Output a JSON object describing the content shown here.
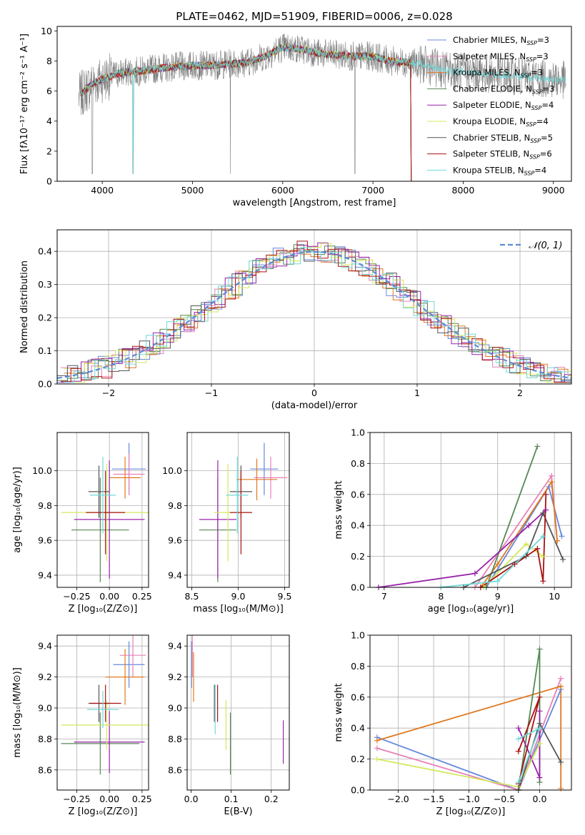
{
  "figure": {
    "title": "PLATE=0462, MJD=51909, FIBERID=0006, z=0.028"
  },
  "models": [
    {
      "name": "Chabrier MILES",
      "nssp": "3",
      "color": "#6688dd"
    },
    {
      "name": "Salpeter MILES",
      "nssp": "3",
      "color": "#e880b8"
    },
    {
      "name": "Kroupa MILES",
      "nssp": "3",
      "color": "#e07820"
    },
    {
      "name": "Chabrier ELODIE",
      "nssp": "3",
      "color": "#558855"
    },
    {
      "name": "Salpeter ELODIE",
      "nssp": "4",
      "color": "#9922aa"
    },
    {
      "name": "Kroupa ELODIE",
      "nssp": "4",
      "color": "#d4e85c"
    },
    {
      "name": "Chabrier STELIB",
      "nssp": "5",
      "color": "#555555"
    },
    {
      "name": "Salpeter STELIB",
      "nssp": "6",
      "color": "#aa1111"
    },
    {
      "name": "Kroupa STELIB",
      "nssp": "4",
      "color": "#70d8d8"
    }
  ],
  "chart_data": [
    {
      "type": "line",
      "xlabel": "wavelength [Angstrom, rest frame]",
      "ylabel": "Flux [fλ10⁻¹⁷ erg cm⁻² s⁻¹ A⁻¹]",
      "xlim": [
        3500,
        9200
      ],
      "ylim": [
        0,
        10.3
      ],
      "xticks": [
        "4000",
        "5000",
        "6000",
        "7000",
        "8000",
        "9000"
      ],
      "yticks": [
        "0",
        "2",
        "4",
        "6",
        "8",
        "10"
      ],
      "legend": "top-right",
      "data_color": "#808080",
      "continuum": {
        "x": [
          3740,
          3800,
          3900,
          4000,
          4200,
          4400,
          4600,
          4800,
          5000,
          5200,
          5400,
          5600,
          5800,
          6000,
          6200,
          6400,
          6600,
          6800,
          7000,
          7200,
          7400,
          7600,
          7800,
          8000,
          8200,
          8400,
          8600,
          8800,
          9000,
          9140
        ],
        "y": [
          5.6,
          6.0,
          6.5,
          6.8,
          7.2,
          7.3,
          7.5,
          7.6,
          7.7,
          7.7,
          7.8,
          7.9,
          8.3,
          8.9,
          8.8,
          8.5,
          8.4,
          8.3,
          8.3,
          8.0,
          7.9,
          7.7,
          7.4,
          7.3,
          7.2,
          7.1,
          7.0,
          6.9,
          6.8,
          6.7
        ]
      }
    },
    {
      "type": "bar",
      "xlabel": "(data-model)/error",
      "ylabel": "Normed distribution",
      "xlim": [
        -2.5,
        2.5
      ],
      "ylim": [
        0,
        0.465
      ],
      "xticks": [
        "−2",
        "−1",
        "0",
        "1",
        "2"
      ],
      "yticks": [
        "0.0",
        "0.1",
        "0.2",
        "0.3",
        "0.4"
      ],
      "grid": true,
      "legend": "top-right",
      "reference_label": "𝒩(0, 1)",
      "reference_color": "#5b8bd6"
    },
    {
      "type": "scatter",
      "xlabel": "Z [log₁₀(Z/Z⊙)]",
      "ylabel": "age  [log₁₀(age/yr)]",
      "xlim": [
        -0.4,
        0.3
      ],
      "ylim": [
        9.33,
        10.22
      ],
      "xticks": [
        "−0.25",
        "0.00",
        "0.25"
      ],
      "yticks": [
        "9.4",
        "9.6",
        "9.8",
        "10.0"
      ],
      "points": [
        {
          "x": 0.15,
          "y": 10.01,
          "xe": 0.13,
          "ye": 0.15
        },
        {
          "x": 0.15,
          "y": 9.98,
          "xe": 0.12,
          "ye": 0.12
        },
        {
          "x": 0.12,
          "y": 9.96,
          "xe": 0.12,
          "ye": 0.12
        },
        {
          "x": -0.07,
          "y": 9.66,
          "xe": 0.22,
          "ye": 0.3
        },
        {
          "x": 0.0,
          "y": 9.72,
          "xe": 0.27,
          "ye": 0.34
        },
        {
          "x": -0.02,
          "y": 9.76,
          "xe": 0.35,
          "ye": 0.28
        },
        {
          "x": -0.08,
          "y": 9.88,
          "xe": 0.08,
          "ye": 0.15
        },
        {
          "x": -0.03,
          "y": 9.76,
          "xe": 0.15,
          "ye": 0.24
        },
        {
          "x": -0.05,
          "y": 9.86,
          "xe": 0.1,
          "ye": 0.22
        }
      ]
    },
    {
      "type": "scatter",
      "xlabel": "mass [log₁₀(M/M⊙)]",
      "xlim": [
        8.45,
        9.55
      ],
      "ylim": [
        9.33,
        10.22
      ],
      "xticks": [
        "8.5",
        "9.0",
        "9.5"
      ],
      "yticks": [
        "9.4",
        "9.6",
        "9.8",
        "10.0"
      ],
      "points": [
        {
          "x": 9.28,
          "y": 10.01,
          "xe": 0.15,
          "ye": 0.15
        },
        {
          "x": 9.35,
          "y": 9.96,
          "xe": 0.18,
          "ye": 0.12
        },
        {
          "x": 9.2,
          "y": 9.95,
          "xe": 0.22,
          "ye": 0.12
        },
        {
          "x": 8.78,
          "y": 9.66,
          "xe": 0.2,
          "ye": 0.3
        },
        {
          "x": 8.78,
          "y": 9.72,
          "xe": 0.2,
          "ye": 0.34
        },
        {
          "x": 8.89,
          "y": 9.76,
          "xe": 0.15,
          "ye": 0.28
        },
        {
          "x": 9.03,
          "y": 9.88,
          "xe": 0.12,
          "ye": 0.15
        },
        {
          "x": 9.03,
          "y": 9.76,
          "xe": 0.12,
          "ye": 0.24
        },
        {
          "x": 8.99,
          "y": 9.86,
          "xe": 0.12,
          "ye": 0.22
        }
      ]
    },
    {
      "type": "line",
      "xlabel": "age  [log₁₀(age/yr)]",
      "ylabel": "mass weight",
      "xlim": [
        6.75,
        10.3
      ],
      "ylim": [
        0,
        1.0
      ],
      "xticks": [
        "7",
        "8",
        "9",
        "10"
      ],
      "yticks": [
        "0.0",
        "0.2",
        "0.4",
        "0.6",
        "0.8",
        "1.0"
      ],
      "grid": true,
      "series": [
        {
          "x": [
            8.8,
            9.9,
            10.13
          ],
          "y": [
            0.0,
            0.65,
            0.33
          ]
        },
        {
          "x": [
            8.6,
            9.95,
            10.05
          ],
          "y": [
            0.0,
            0.72,
            0.3
          ]
        },
        {
          "x": [
            8.7,
            9.0,
            9.95,
            10.05
          ],
          "y": [
            0.0,
            0.15,
            0.68,
            0.3
          ]
        },
        {
          "x": [
            8.8,
            9.7
          ],
          "y": [
            0.0,
            0.91
          ]
        },
        {
          "x": [
            6.9,
            8.6,
            9.55,
            9.85
          ],
          "y": [
            0.0,
            0.09,
            0.4,
            0.5
          ]
        },
        {
          "x": [
            8.75,
            9.5,
            9.8
          ],
          "y": [
            0.0,
            0.28,
            0.2
          ]
        },
        {
          "x": [
            8.4,
            9.5,
            9.8,
            10.15
          ],
          "y": [
            0.0,
            0.2,
            0.48,
            0.18
          ]
        },
        {
          "x": [
            8.7,
            9.3,
            9.7,
            9.8,
            9.85
          ],
          "y": [
            0.0,
            0.15,
            0.25,
            0.04,
            0.6
          ]
        },
        {
          "x": [
            8.0,
            9.0,
            9.8
          ],
          "y": [
            0.0,
            0.04,
            0.33
          ]
        }
      ]
    },
    {
      "type": "scatter",
      "xlabel": "Z [log₁₀(Z/Z⊙)]",
      "ylabel": "mass [log₁₀(M/M⊙)]",
      "xlim": [
        -0.4,
        0.3
      ],
      "ylim": [
        8.47,
        9.47
      ],
      "xticks": [
        "−0.25",
        "0.00",
        "0.25"
      ],
      "yticks": [
        "8.6",
        "8.8",
        "9.0",
        "9.2",
        "9.4"
      ],
      "points": [
        {
          "x": 0.15,
          "y": 9.28,
          "xe": 0.12,
          "ye": 0.15
        },
        {
          "x": 0.18,
          "y": 9.34,
          "xe": 0.1,
          "ye": 0.14
        },
        {
          "x": 0.12,
          "y": 9.2,
          "xe": 0.15,
          "ye": 0.18
        },
        {
          "x": -0.07,
          "y": 8.77,
          "xe": 0.3,
          "ye": 0.2
        },
        {
          "x": 0.0,
          "y": 8.78,
          "xe": 0.27,
          "ye": 0.2
        },
        {
          "x": -0.02,
          "y": 8.89,
          "xe": 0.35,
          "ye": 0.16
        },
        {
          "x": -0.08,
          "y": 9.03,
          "xe": 0.08,
          "ye": 0.12
        },
        {
          "x": -0.03,
          "y": 9.03,
          "xe": 0.12,
          "ye": 0.12
        },
        {
          "x": -0.05,
          "y": 8.99,
          "xe": 0.12,
          "ye": 0.12
        }
      ]
    },
    {
      "type": "scatter",
      "xlabel": "E(B-V)",
      "xlim": [
        -0.01,
        0.245
      ],
      "ylim": [
        8.47,
        9.47
      ],
      "xticks": [
        "0.0",
        "0.1",
        "0.2"
      ],
      "yticks": [
        "8.6",
        "8.8",
        "9.0",
        "9.2",
        "9.4"
      ],
      "points": [
        {
          "x": 0.001,
          "y": 9.28,
          "ye": 0.15
        },
        {
          "x": 0.003,
          "y": 9.34,
          "ye": 0.14
        },
        {
          "x": 0.006,
          "y": 9.2,
          "ye": 0.16
        },
        {
          "x": 0.098,
          "y": 8.77,
          "ye": 0.2
        },
        {
          "x": 0.23,
          "y": 8.78,
          "ye": 0.14
        },
        {
          "x": 0.087,
          "y": 8.89,
          "ye": 0.16
        },
        {
          "x": 0.058,
          "y": 9.03,
          "ye": 0.12
        },
        {
          "x": 0.066,
          "y": 9.03,
          "ye": 0.12
        },
        {
          "x": 0.06,
          "y": 8.99,
          "ye": 0.16
        }
      ]
    },
    {
      "type": "line",
      "xlabel": "Z [log₁₀(Z/Z⊙)]",
      "ylabel": "mass weight",
      "xlim": [
        -2.4,
        0.45
      ],
      "ylim": [
        0,
        1.0
      ],
      "xticks": [
        "−2.0",
        "−1.5",
        "−1.0",
        "−0.5",
        "0.0"
      ],
      "yticks": [
        "0.0",
        "0.2",
        "0.4",
        "0.6",
        "0.8",
        "1.0"
      ],
      "grid": true,
      "series": [
        {
          "x": [
            -2.3,
            -0.3,
            0.3
          ],
          "y": [
            0.34,
            0.0,
            0.65
          ]
        },
        {
          "x": [
            -2.3,
            -0.3,
            0.3
          ],
          "y": [
            0.27,
            0.0,
            0.72
          ]
        },
        {
          "x": [
            -2.3,
            0.3,
            0.3
          ],
          "y": [
            0.32,
            0.67,
            0.01
          ]
        },
        {
          "x": [
            -0.3,
            0.0,
            0.0
          ],
          "y": [
            0.0,
            0.91,
            0.05
          ]
        },
        {
          "x": [
            -0.3,
            0.0,
            0.0
          ],
          "y": [
            0.4,
            0.08,
            0.51
          ]
        },
        {
          "x": [
            -2.3,
            -0.3,
            0.0
          ],
          "y": [
            0.2,
            0.02,
            0.3
          ]
        },
        {
          "x": [
            -0.3,
            0.0,
            0.3
          ],
          "y": [
            0.0,
            0.43,
            0.18
          ]
        },
        {
          "x": [
            -0.3,
            0.0,
            -0.3
          ],
          "y": [
            0.04,
            0.6,
            0.25
          ]
        },
        {
          "x": [
            -0.3,
            0.0,
            -0.3
          ],
          "y": [
            0.05,
            0.4,
            0.33
          ]
        }
      ]
    }
  ]
}
